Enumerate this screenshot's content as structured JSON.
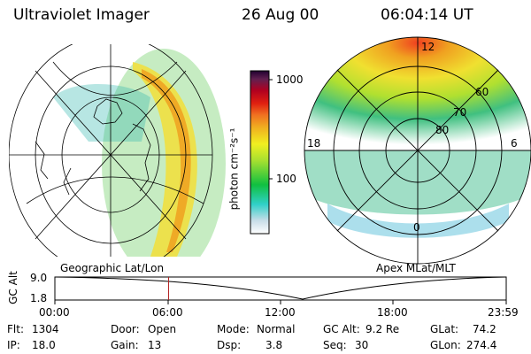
{
  "header": {
    "instrument": "Ultraviolet Imager",
    "date": "26 Aug 00",
    "time": "06:04:14 UT"
  },
  "colorbar": {
    "unit_label": "photon cm⁻²s⁻¹",
    "tick_1000": "1000",
    "tick_100": "100"
  },
  "left_panel": {
    "caption": "Geographic Lat/Lon"
  },
  "right_panel": {
    "caption": "Apex MLat/MLT",
    "mlt_12": "12",
    "mlt_18": "18",
    "mlt_6": "6",
    "mlt_0": "0",
    "lat_60": "60",
    "lat_70": "70",
    "lat_80": "80"
  },
  "altitude_strip": {
    "ylabel": "GC Alt",
    "ymax": "9.0",
    "ymin": "1.8",
    "ticks": [
      "00:00",
      "06:00",
      "12:00",
      "18:00",
      "23:59"
    ],
    "current_time_fraction": 0.252
  },
  "status": {
    "flt_label": "Flt:",
    "flt_value": "1304",
    "ip_label": "IP:",
    "ip_value": "18.0",
    "door_label": "Door:",
    "door_value": "Open",
    "gain_label": "Gain:",
    "gain_value": "13",
    "mode_label": "Mode:",
    "mode_value": "Normal",
    "dsp_label": "Dsp:",
    "dsp_value": "3.8",
    "gcalt_label": "GC Alt:",
    "gcalt_value": "9.2 Re",
    "seq_label": "Seq:",
    "seq_value": "30",
    "glat_label": "GLat:",
    "glat_value": "74.2",
    "glon_label": "GLon:",
    "glon_value": "274.4"
  },
  "colors": {
    "axis": "#000000",
    "marker": "#b22222",
    "colormap": [
      "#ffffff",
      "#d8e8f0",
      "#30d0c8",
      "#10c040",
      "#a8e030",
      "#f0f020",
      "#f0c020",
      "#f08020",
      "#e03010",
      "#c00010",
      "#800040",
      "#300040"
    ]
  }
}
